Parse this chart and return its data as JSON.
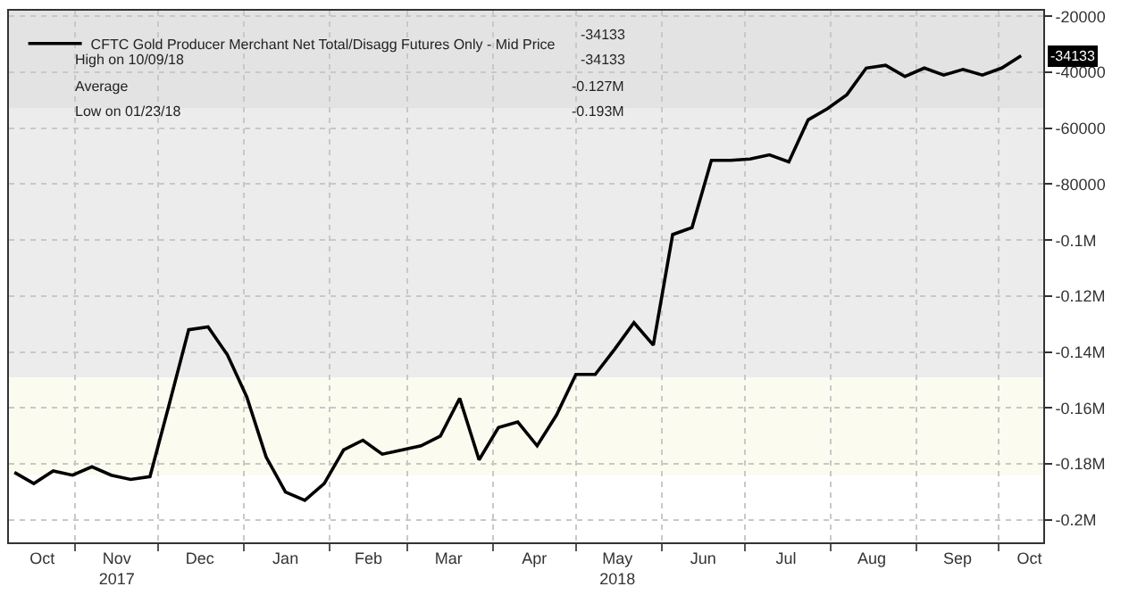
{
  "chart_data": {
    "type": "line",
    "x": [
      "2017-10-10",
      "2017-10-17",
      "2017-10-24",
      "2017-10-31",
      "2017-11-07",
      "2017-11-14",
      "2017-11-21",
      "2017-11-28",
      "2017-12-05",
      "2017-12-12",
      "2017-12-19",
      "2017-12-26",
      "2018-01-02",
      "2018-01-09",
      "2018-01-16",
      "2018-01-23",
      "2018-01-30",
      "2018-02-06",
      "2018-02-13",
      "2018-02-20",
      "2018-02-27",
      "2018-03-06",
      "2018-03-13",
      "2018-03-20",
      "2018-03-27",
      "2018-04-03",
      "2018-04-10",
      "2018-04-17",
      "2018-04-24",
      "2018-05-01",
      "2018-05-08",
      "2018-05-15",
      "2018-05-22",
      "2018-05-29",
      "2018-06-05",
      "2018-06-12",
      "2018-06-19",
      "2018-06-26",
      "2018-07-03",
      "2018-07-10",
      "2018-07-17",
      "2018-07-24",
      "2018-07-31",
      "2018-08-07",
      "2018-08-14",
      "2018-08-21",
      "2018-08-28",
      "2018-09-04",
      "2018-09-11",
      "2018-09-18",
      "2018-09-25",
      "2018-10-02",
      "2018-10-09"
    ],
    "series": [
      {
        "name": "CFTC Gold Producer Merchant Net Total/Disagg Futures Only - Mid Price",
        "color": "#000000",
        "values": [
          -183000,
          -187000,
          -182500,
          -184000,
          -181000,
          -184000,
          -185500,
          -184500,
          -158500,
          -132000,
          -131000,
          -141000,
          -156000,
          -177500,
          -190000,
          -193000,
          -187000,
          -175000,
          -171500,
          -176500,
          -175000,
          -173500,
          -170000,
          -156500,
          -178500,
          -167000,
          -165000,
          -173500,
          -162500,
          -148000,
          -148000,
          -139000,
          -129500,
          -137500,
          -98000,
          -95500,
          -71500,
          -71500,
          -71000,
          -69500,
          -72000,
          -57000,
          -53000,
          -48000,
          -38500,
          -37500,
          -41500,
          -38500,
          -41000,
          -39000,
          -41000,
          -38500,
          -34133
        ]
      }
    ],
    "xlim": [
      "2017-10-08",
      "2018-10-17"
    ],
    "xticks": [
      {
        "value": "2017-10-20",
        "label": "Oct"
      },
      {
        "value": "2017-11-16",
        "label": "Nov\n2017"
      },
      {
        "value": "2017-12-16",
        "label": "Dec"
      },
      {
        "value": "2018-01-16",
        "label": "Jan"
      },
      {
        "value": "2018-02-15",
        "label": "Feb"
      },
      {
        "value": "2018-03-16",
        "label": "Mar"
      },
      {
        "value": "2018-04-16",
        "label": "Apr"
      },
      {
        "value": "2018-05-16",
        "label": "May\n2018"
      },
      {
        "value": "2018-06-16",
        "label": "Jun"
      },
      {
        "value": "2018-07-16",
        "label": "Jul"
      },
      {
        "value": "2018-08-16",
        "label": "Aug"
      },
      {
        "value": "2018-09-16",
        "label": "Sep"
      },
      {
        "value": "2018-10-12",
        "label": "Oct"
      },
      {
        "value": "2017-11-01",
        "label": null
      },
      {
        "value": "2017-12-01",
        "label": null
      },
      {
        "value": "2018-01-01",
        "label": null
      },
      {
        "value": "2018-02-01",
        "label": null
      },
      {
        "value": "2018-03-01",
        "label": null
      },
      {
        "value": "2018-04-01",
        "label": null
      },
      {
        "value": "2018-05-01",
        "label": null
      },
      {
        "value": "2018-06-01",
        "label": null
      },
      {
        "value": "2018-07-01",
        "label": null
      },
      {
        "value": "2018-08-01",
        "label": null
      },
      {
        "value": "2018-09-01",
        "label": null
      },
      {
        "value": "2018-10-01",
        "label": null
      }
    ],
    "ylim": [
      -208000,
      -18000
    ],
    "yticks": [
      -20000,
      -40000,
      -60000,
      -80000,
      {
        "value": -100000,
        "label": "-0.1M"
      },
      {
        "value": -120000,
        "label": "-0.12M"
      },
      {
        "value": -140000,
        "label": "-0.14M"
      },
      {
        "value": -160000,
        "label": "-0.16M"
      },
      {
        "value": -180000,
        "label": "-0.18M"
      },
      {
        "value": -200000,
        "label": "-0.2M"
      }
    ],
    "bands": [
      {
        "axis": "y",
        "from": -53000,
        "to": -18000,
        "color": "#e3e3e3"
      },
      {
        "axis": "y",
        "from": -149000,
        "to": -53000,
        "color": "#ececec"
      },
      {
        "axis": "y",
        "from": -184000,
        "to": -149000,
        "color": "#fbfbf0"
      }
    ],
    "annotations": [
      "-34133",
      "High on 10/09/18",
      "-34133",
      "Average",
      "-0.127M",
      "Low on 01/23/18",
      "-0.193M",
      "-34133"
    ],
    "grid": true,
    "legend": "top left",
    "marker": "none",
    "line_style": "solid"
  }
}
